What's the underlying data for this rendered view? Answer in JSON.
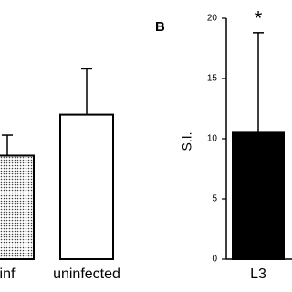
{
  "chart_data": [
    {
      "type": "bar",
      "categories": [
        "inf",
        "uninfected"
      ],
      "values": [
        8.6,
        12.0
      ],
      "errors": [
        1.7,
        3.8
      ],
      "fills": [
        "dots",
        "#ffffff"
      ],
      "ylim": [
        0,
        20
      ]
    },
    {
      "type": "bar",
      "panel_label": "B",
      "ylabel": "S.I.",
      "categories": [
        "L3"
      ],
      "values": [
        10.5
      ],
      "errors": [
        8.3
      ],
      "annotation": "*",
      "fills": [
        "#000000"
      ],
      "ylim": [
        0,
        20
      ],
      "yticks": [
        0,
        5,
        10,
        15,
        20
      ]
    }
  ]
}
